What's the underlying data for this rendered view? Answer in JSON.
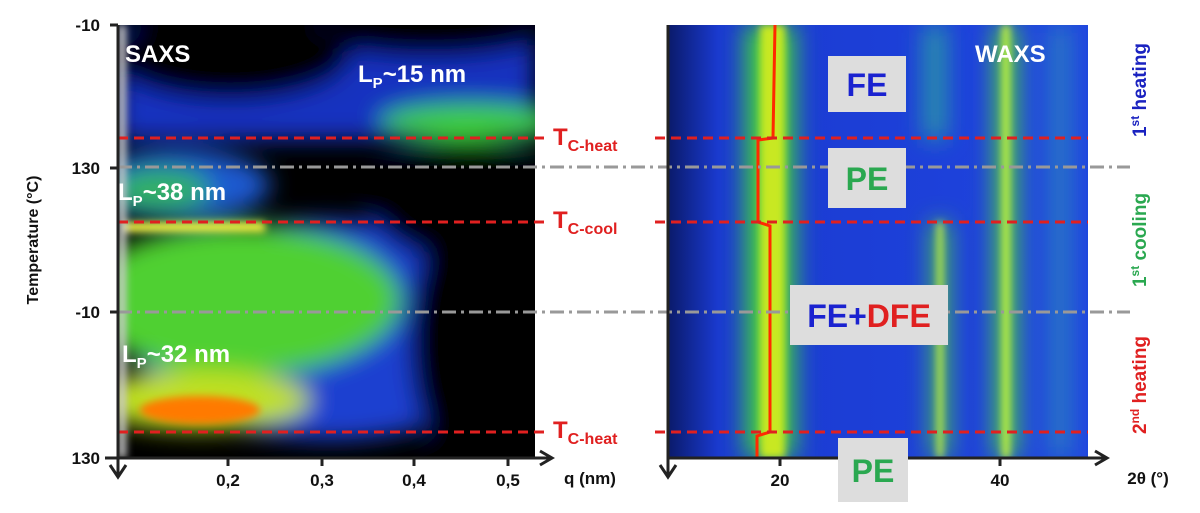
{
  "left": {
    "label": "SAXS",
    "y_axis_title": "Temperature (°C)",
    "y_ticks": [
      "-10",
      "130",
      "-10",
      "130"
    ],
    "x_ticks": [
      "0,2",
      "0,3",
      "0,4",
      "0,5"
    ],
    "x_axis_title": "q (nm)",
    "annotations": [
      {
        "main": "L",
        "sub": "P",
        "rest": "~15 nm"
      },
      {
        "main": "L",
        "sub": "P",
        "rest": "~38 nm"
      },
      {
        "main": "L",
        "sub": "P",
        "rest": "~32 nm"
      }
    ]
  },
  "transitions": [
    {
      "main": "T",
      "sub": "C-heat"
    },
    {
      "main": "T",
      "sub": "C-cool"
    },
    {
      "main": "T",
      "sub": "C-heat"
    }
  ],
  "right": {
    "label": "WAXS",
    "x_ticks": [
      "20",
      "40"
    ],
    "x_axis_title": "2θ (°)",
    "phases": [
      {
        "parts": [
          "FE"
        ]
      },
      {
        "parts": [
          "PE"
        ]
      },
      {
        "parts": [
          "FE+",
          "DFE"
        ]
      },
      {
        "parts": [
          "PE"
        ]
      }
    ]
  },
  "stages": [
    {
      "ord": "1",
      "sup": "st",
      "rest": " heating"
    },
    {
      "ord": "1",
      "sup": "st",
      "rest": " cooling"
    },
    {
      "ord": "2",
      "sup": "nd",
      "rest": " heating"
    }
  ]
}
